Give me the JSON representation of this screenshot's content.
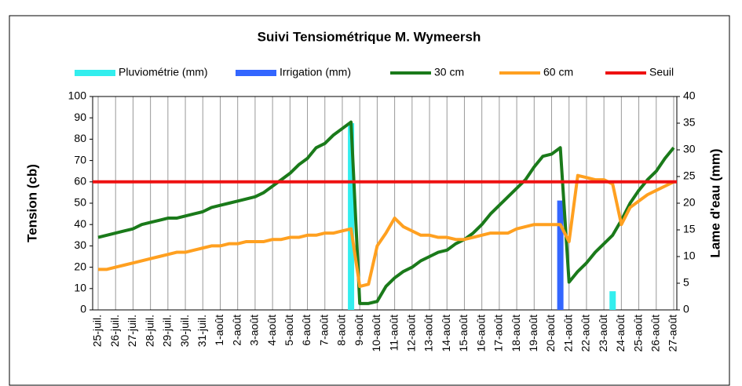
{
  "chart_data": {
    "type": "combo",
    "title": "Suivi Tensiométrique M. Wymeersh",
    "ylabel": "Tension (cb)",
    "y2label": "Lame d'eau (mm)",
    "categories": [
      "25-juil.",
      null,
      "26-juil.",
      null,
      "27-juil.",
      null,
      "28-juil.",
      null,
      "29-juil.",
      null,
      "30-juil.",
      null,
      "31-juil.",
      null,
      "1-août",
      null,
      "2-août",
      null,
      "3-août",
      null,
      "4-août",
      null,
      "5-août",
      null,
      "6-août",
      null,
      "7-août",
      null,
      "8-août",
      null,
      "9-août",
      null,
      "10-août",
      null,
      "11-août",
      null,
      "12-août",
      null,
      "13-août",
      null,
      "14-août",
      null,
      "15-août",
      null,
      "16-août",
      null,
      "17-août",
      null,
      "18-août",
      null,
      "19-août",
      null,
      "20-août",
      null,
      "21-août",
      null,
      "22-août",
      null,
      "23-août",
      null,
      "24-août",
      null,
      "25-août",
      null,
      "26-août",
      null,
      "27-août"
    ],
    "series": [
      {
        "name": "Pluviométrie (mm)",
        "kind": "bar",
        "axis": "y2",
        "color": "#33eeee",
        "values": [
          null,
          null,
          null,
          null,
          null,
          null,
          null,
          null,
          null,
          null,
          null,
          null,
          null,
          null,
          null,
          null,
          null,
          null,
          null,
          null,
          null,
          null,
          null,
          null,
          null,
          null,
          null,
          null,
          null,
          35,
          null,
          null,
          null,
          null,
          null,
          null,
          null,
          null,
          null,
          null,
          null,
          null,
          null,
          null,
          null,
          null,
          null,
          null,
          null,
          null,
          null,
          null,
          null,
          null,
          null,
          null,
          null,
          null,
          null,
          3.5,
          null,
          null,
          null,
          null,
          null,
          null,
          null
        ]
      },
      {
        "name": "Irrigation (mm)",
        "kind": "bar",
        "axis": "y2",
        "color": "#3366ff",
        "values": [
          null,
          null,
          null,
          null,
          null,
          null,
          null,
          null,
          null,
          null,
          null,
          null,
          null,
          null,
          null,
          null,
          null,
          null,
          null,
          null,
          null,
          null,
          null,
          null,
          null,
          null,
          null,
          null,
          null,
          null,
          null,
          null,
          null,
          null,
          null,
          null,
          null,
          null,
          null,
          null,
          null,
          null,
          null,
          null,
          null,
          null,
          null,
          null,
          null,
          null,
          null,
          null,
          null,
          20.5,
          null,
          null,
          null,
          null,
          null,
          null,
          null,
          null,
          null,
          null,
          null,
          null,
          null
        ]
      },
      {
        "name": "30 cm",
        "kind": "line",
        "color": "#1a7a1a",
        "values": [
          34,
          35,
          36,
          37,
          38,
          40,
          41,
          42,
          43,
          43,
          44,
          45,
          46,
          48,
          49,
          50,
          51,
          52,
          53,
          55,
          58,
          61,
          64,
          68,
          71,
          76,
          78,
          82,
          85,
          88,
          3,
          3,
          4,
          11,
          15,
          18,
          20,
          23,
          25,
          27,
          28,
          31,
          33,
          36,
          40,
          45,
          49,
          53,
          57,
          61,
          67,
          72,
          73,
          76,
          13,
          18,
          22,
          27,
          31,
          35,
          42,
          50,
          56,
          61,
          65,
          71,
          76
        ]
      },
      {
        "name": "60 cm",
        "kind": "line",
        "color": "#ffa020",
        "values": [
          19,
          19,
          20,
          21,
          22,
          23,
          24,
          25,
          26,
          27,
          27,
          28,
          29,
          30,
          30,
          31,
          31,
          32,
          32,
          32,
          33,
          33,
          34,
          34,
          35,
          35,
          36,
          36,
          37,
          38,
          11,
          12,
          30,
          36,
          43,
          39,
          37,
          35,
          35,
          34,
          34,
          33,
          33,
          34,
          35,
          36,
          36,
          36,
          38,
          39,
          40,
          40,
          40,
          40,
          32,
          63,
          62,
          61,
          61,
          59,
          40,
          48,
          51,
          54,
          56,
          58,
          60
        ]
      }
    ],
    "threshold": {
      "name": "Seuil",
      "color": "#ee1111",
      "value": 60
    },
    "ylim": [
      0,
      100
    ],
    "yticks": [
      0,
      10,
      20,
      30,
      40,
      50,
      60,
      70,
      80,
      90,
      100
    ],
    "y2lim": [
      0,
      40
    ],
    "y2ticks": [
      0,
      5,
      10,
      15,
      20,
      25,
      30,
      35,
      40
    ],
    "grid": true
  }
}
